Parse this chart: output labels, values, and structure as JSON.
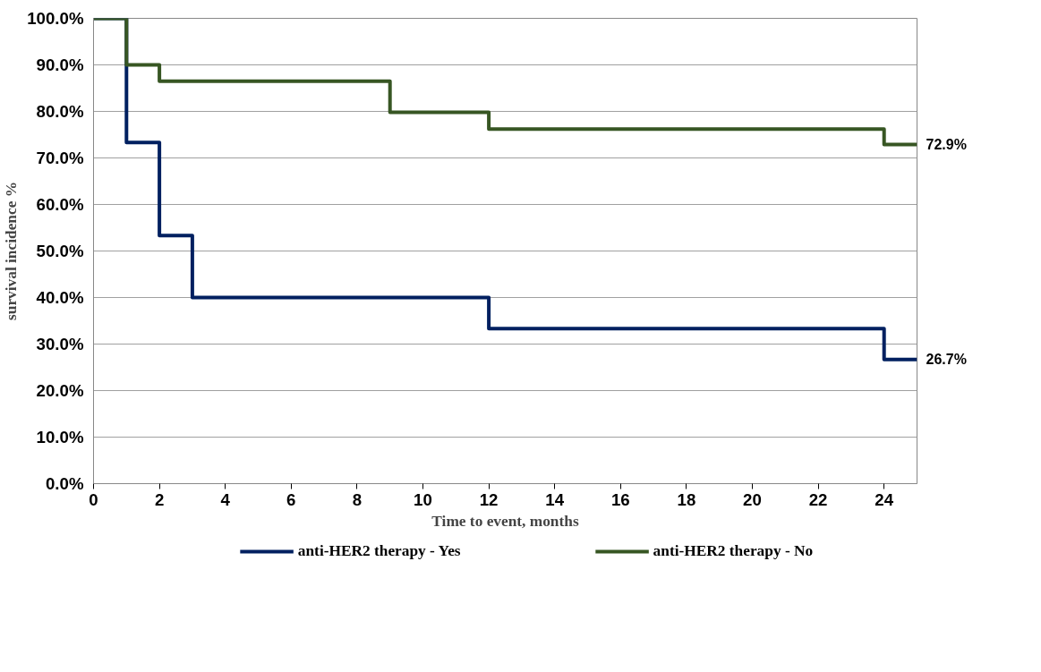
{
  "chart_data": {
    "type": "step",
    "xlabel": "Time to event, months",
    "ylabel": "survival incidence %",
    "series": [
      {
        "name": "anti-HER2 therapy - Yes",
        "color": "#002060",
        "x": [
          0,
          1,
          2,
          3,
          12,
          24,
          25
        ],
        "values": [
          100,
          73.3,
          53.3,
          40,
          33.3,
          26.7,
          26.7
        ]
      },
      {
        "name": "anti-HER2 therapy - No",
        "color": "#375623",
        "x": [
          0,
          1,
          2,
          9,
          12,
          24,
          25
        ],
        "values": [
          100,
          90,
          86.5,
          79.8,
          76.2,
          72.9,
          72.9
        ]
      }
    ],
    "xlim": [
      0,
      25
    ],
    "xticks": [
      0,
      2,
      4,
      6,
      8,
      10,
      12,
      14,
      16,
      18,
      20,
      22,
      24
    ],
    "ylim": [
      0,
      100
    ],
    "yticks": [
      {
        "value": 0,
        "label": "0.0%"
      },
      {
        "value": 10,
        "label": "10.0%"
      },
      {
        "value": 20,
        "label": "20.0%"
      },
      {
        "value": 30,
        "label": "30.0%"
      },
      {
        "value": 40,
        "label": "40.0%"
      },
      {
        "value": 50,
        "label": "50.0%"
      },
      {
        "value": 60,
        "label": "60.0%"
      },
      {
        "value": 70,
        "label": "70.0%"
      },
      {
        "value": 80,
        "label": "80.0%"
      },
      {
        "value": 90,
        "label": "90.0%"
      },
      {
        "value": 100,
        "label": "100.0%"
      }
    ],
    "annotations": [
      {
        "text": "72.9%",
        "x": 25,
        "y": 72.9
      },
      {
        "text": "26.7%",
        "x": 25,
        "y": 26.7
      }
    ],
    "grid": "y",
    "legend": "bottom",
    "marker": "none",
    "line_style": "solid"
  }
}
